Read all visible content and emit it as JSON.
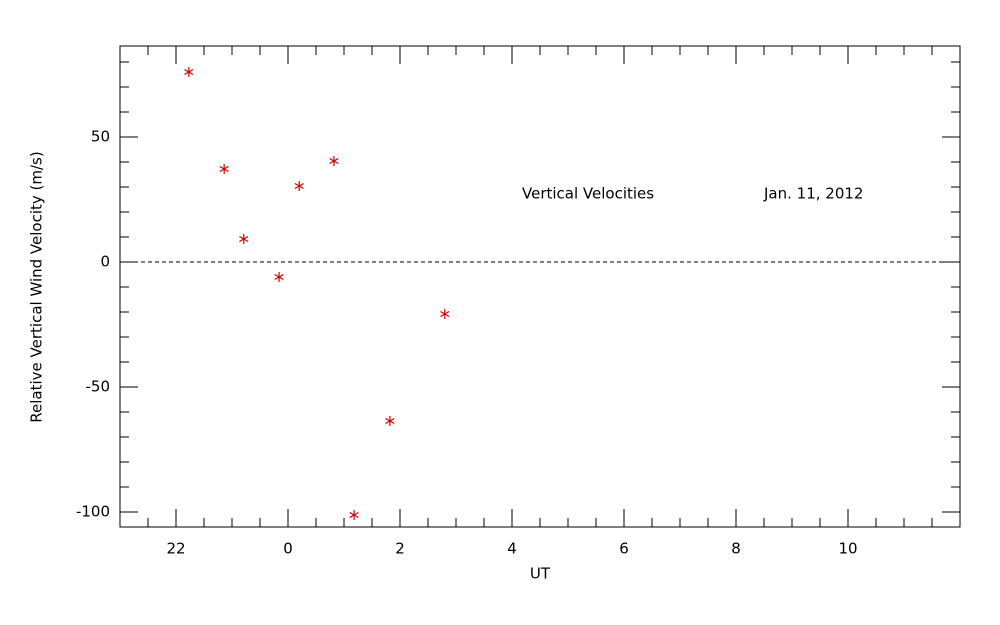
{
  "chart_data": {
    "type": "scatter",
    "x_label": "UT",
    "y_label": "Relative Vertical Wind Velocity (m/s)",
    "annotations": [
      "Vertical Velocities",
      "Jan. 11, 2012"
    ],
    "series": [
      {
        "color": "#cc0000",
        "marker": "asterisk",
        "x": [
          -1.77,
          -1.14,
          -0.79,
          -0.16,
          0.2,
          0.82,
          1.18,
          1.82,
          2.8
        ],
        "values": [
          76,
          37.2,
          9.2,
          -6,
          30.4,
          40.4,
          -101.2,
          -63.6,
          -20.8
        ]
      }
    ],
    "xlim": [
      -3,
      12
    ],
    "xticks": [
      {
        "value": -2,
        "label": "22"
      },
      0,
      2,
      4,
      6,
      8,
      10
    ],
    "xminor": 4,
    "ylim": [
      -106,
      86.4
    ],
    "yticks": [
      -100,
      -50,
      0,
      50
    ],
    "yminor": 5,
    "reference_line": {
      "y": 0,
      "style": "dashed"
    }
  }
}
